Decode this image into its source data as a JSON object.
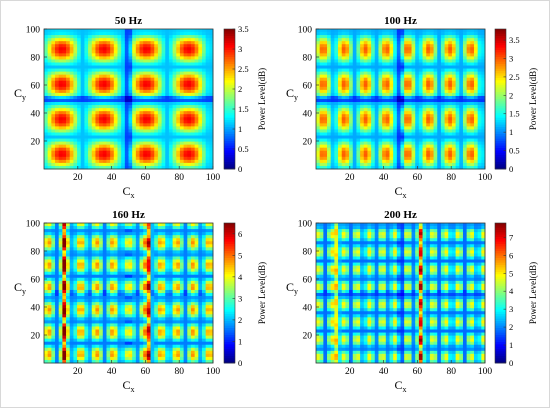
{
  "chart_data": [
    {
      "type": "heatmap",
      "title": "50 Hz",
      "xlabel": "C",
      "xlabel_sub": "x",
      "ylabel": "C",
      "ylabel_sub": "y",
      "xlim": [
        0,
        100
      ],
      "ylim": [
        0,
        100
      ],
      "xticks": [
        20,
        40,
        60,
        80,
        100
      ],
      "yticks": [
        20,
        40,
        60,
        80,
        100
      ],
      "colorbar_label": "Power Level(dB)",
      "colorbar_range": [
        0,
        3.5
      ],
      "colorbar_ticks": [
        "0",
        "0.5",
        "1",
        "1.5",
        "2",
        "2.5",
        "3",
        "3.5"
      ],
      "colormap": "jet",
      "pattern": {
        "x_period": 25,
        "y_period": 25,
        "peak": 3.1,
        "base": 1.1
      }
    },
    {
      "type": "heatmap",
      "title": "100 Hz",
      "xlabel": "C",
      "xlabel_sub": "x",
      "ylabel": "C",
      "ylabel_sub": "y",
      "xlim": [
        0,
        100
      ],
      "ylim": [
        0,
        100
      ],
      "xticks": [
        20,
        40,
        60,
        80,
        100
      ],
      "yticks": [
        20,
        40,
        60,
        80,
        100
      ],
      "colorbar_label": "Power Level(dB)",
      "colorbar_range": [
        0,
        3.8
      ],
      "colorbar_ticks": [
        "0",
        "0.5",
        "1",
        "1.5",
        "2",
        "2.5",
        "3",
        "3.5"
      ],
      "colormap": "jet",
      "pattern": {
        "x_period": 12.5,
        "y_period": 25,
        "peak": 3.0,
        "base": 1.1
      }
    },
    {
      "type": "heatmap",
      "title": "160 Hz",
      "xlabel": "C",
      "xlabel_sub": "x",
      "ylabel": "C",
      "ylabel_sub": "y",
      "xlim": [
        0,
        100
      ],
      "ylim": [
        0,
        100
      ],
      "xticks": [
        20,
        40,
        60,
        80,
        100
      ],
      "yticks": [
        20,
        40,
        60,
        80,
        100
      ],
      "colorbar_label": "Power Level(dB)",
      "colorbar_range": [
        0,
        6.5
      ],
      "colorbar_ticks": [
        "0",
        "1",
        "2",
        "3",
        "4",
        "5",
        "6"
      ],
      "colormap": "jet",
      "pattern": {
        "x_period": 9.5,
        "y_period": 16,
        "peak": 4.8,
        "base": 1.6,
        "hot_columns": [
          12,
          62
        ]
      }
    },
    {
      "type": "heatmap",
      "title": "200 Hz",
      "xlabel": "C",
      "xlabel_sub": "x",
      "ylabel": "C",
      "ylabel_sub": "y",
      "xlim": [
        0,
        100
      ],
      "ylim": [
        0,
        100
      ],
      "xticks": [
        20,
        40,
        60,
        80,
        100
      ],
      "yticks": [
        20,
        40,
        60,
        80,
        100
      ],
      "colorbar_label": "Power Level(dB)",
      "colorbar_range": [
        0,
        7.8
      ],
      "colorbar_ticks": [
        "0",
        "1",
        "2",
        "3",
        "4",
        "5",
        "6",
        "7"
      ],
      "colormap": "jet",
      "pattern": {
        "x_period": 7.5,
        "y_period": 12.5,
        "peak": 5.0,
        "base": 1.8,
        "hot_columns": [
          12,
          62
        ]
      }
    }
  ]
}
